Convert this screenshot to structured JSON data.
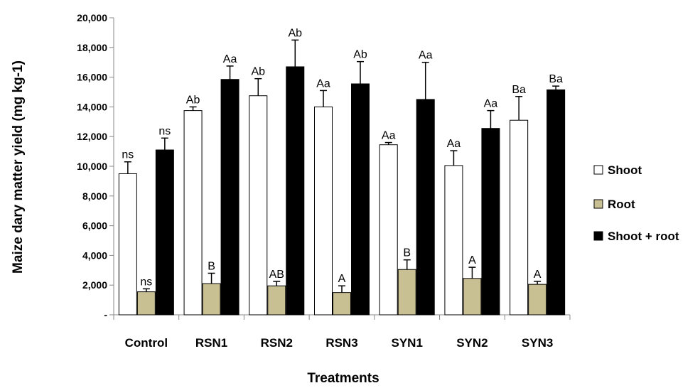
{
  "chart_data": {
    "type": "bar",
    "title": "",
    "xlabel": "Treatments",
    "ylabel": "Maize dary matter yield (mg kg-1)",
    "ylim": [
      0,
      20000
    ],
    "y_ticks": [
      0,
      2000,
      4000,
      6000,
      8000,
      10000,
      12000,
      14000,
      16000,
      18000,
      20000
    ],
    "y_tick_labels": [
      "-",
      "2,000",
      "4,000",
      "6,000",
      "8,000",
      "10,000",
      "12,000",
      "14,000",
      "16,000",
      "18,000",
      "20,000"
    ],
    "categories": [
      "Control",
      "RSN1",
      "RSN2",
      "RSN3",
      "SYN1",
      "SYN2",
      "SYN3"
    ],
    "legend_position": "right",
    "grid": false,
    "series": [
      {
        "name": "Shoot",
        "color": "#ffffff",
        "values": [
          9500,
          13750,
          14750,
          14000,
          11450,
          10050,
          13100
        ],
        "errors": [
          800,
          250,
          1150,
          1100,
          150,
          1000,
          1600
        ],
        "labels": [
          "ns",
          "Ab",
          "Ab",
          "Aa",
          "Aa",
          "Aa",
          "Ba"
        ]
      },
      {
        "name": "Root",
        "color": "#c8bf93",
        "values": [
          1550,
          2100,
          1950,
          1500,
          3050,
          2450,
          2050
        ],
        "errors": [
          200,
          700,
          300,
          450,
          650,
          750,
          200
        ],
        "labels": [
          "ns",
          "B",
          "AB",
          "A",
          "B",
          "A",
          "A"
        ]
      },
      {
        "name": "Shoot + root",
        "color": "#000000",
        "values": [
          11100,
          15850,
          16700,
          15550,
          14500,
          12550,
          15150
        ],
        "errors": [
          800,
          900,
          1800,
          1500,
          2500,
          1200,
          250
        ],
        "labels": [
          "ns",
          "Aa",
          "Ab",
          "Ab",
          "Aa",
          "Aa",
          "Ba"
        ]
      }
    ]
  }
}
